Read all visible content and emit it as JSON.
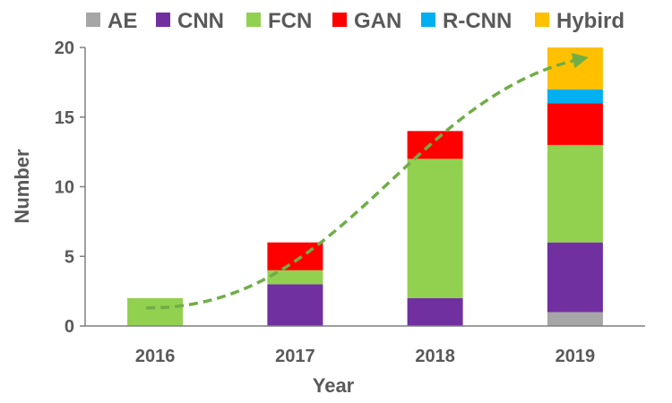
{
  "chart_data": {
    "type": "bar",
    "stacked": true,
    "categories": [
      "2016",
      "2017",
      "2018",
      "2019"
    ],
    "series": [
      {
        "name": "AE",
        "color": "#A6A6A6",
        "values": [
          0,
          0,
          0,
          1
        ]
      },
      {
        "name": "CNN",
        "color": "#7030A0",
        "values": [
          0,
          3,
          2,
          5
        ]
      },
      {
        "name": "FCN",
        "color": "#92D050",
        "values": [
          2,
          1,
          10,
          7
        ]
      },
      {
        "name": "GAN",
        "color": "#FF0000",
        "values": [
          0,
          2,
          2,
          3
        ]
      },
      {
        "name": "R-CNN",
        "color": "#00B0F0",
        "values": [
          0,
          0,
          0,
          1
        ]
      },
      {
        "name": "Hybird",
        "color": "#FFC000",
        "values": [
          0,
          0,
          0,
          3
        ]
      }
    ],
    "xlabel": "Year",
    "ylabel": "Number",
    "ylim": [
      0,
      20
    ],
    "yticks": [
      "0",
      "5",
      "10",
      "15",
      "20"
    ],
    "grid": false,
    "legend_position": "top",
    "trend_arrow": {
      "color": "#70AD47",
      "style": "dashed",
      "x": [
        "2016",
        "2019"
      ],
      "y": [
        1.3,
        19.2
      ]
    }
  }
}
